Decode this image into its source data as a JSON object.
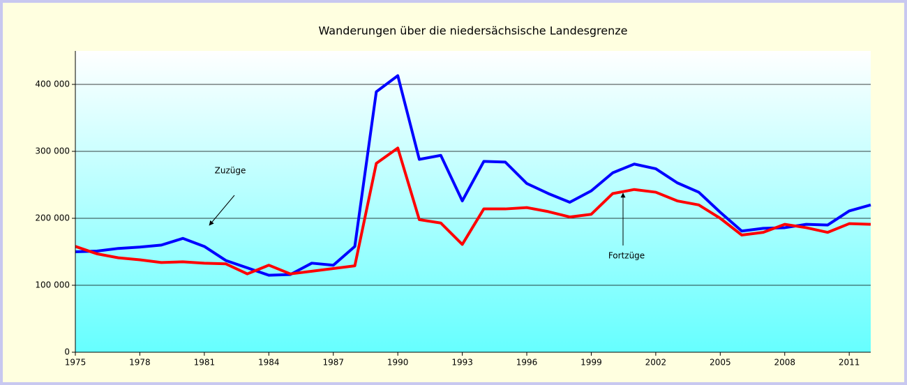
{
  "chart_data": {
    "type": "line",
    "title": "Wanderungen über die niedersächsische Landesgrenze",
    "x": [
      1975,
      1976,
      1977,
      1978,
      1979,
      1980,
      1981,
      1982,
      1983,
      1984,
      1985,
      1986,
      1987,
      1988,
      1989,
      1990,
      1991,
      1992,
      1993,
      1994,
      1995,
      1996,
      1997,
      1998,
      1999,
      2000,
      2001,
      2002,
      2003,
      2004,
      2005,
      2006,
      2007,
      2008,
      2009,
      2010,
      2011,
      2012
    ],
    "series": [
      {
        "name": "Zuzüge",
        "color": "#0000ff",
        "values": [
          150000,
          151000,
          155000,
          157000,
          160000,
          170000,
          158000,
          137000,
          126000,
          115000,
          116000,
          133000,
          130000,
          158000,
          389000,
          413000,
          288000,
          294000,
          226000,
          285000,
          284000,
          252000,
          237000,
          224000,
          241000,
          268000,
          281000,
          274000,
          253000,
          239000,
          209000,
          181000,
          185000,
          186000,
          191000,
          190000,
          211000,
          220000
        ]
      },
      {
        "name": "Fortzüge",
        "color": "#ff0000",
        "values": [
          158000,
          147000,
          141000,
          138000,
          134000,
          135000,
          133000,
          132000,
          117000,
          130000,
          117000,
          121000,
          125000,
          129000,
          282000,
          305000,
          198000,
          193000,
          161000,
          214000,
          214000,
          216000,
          210000,
          202000,
          206000,
          237000,
          243000,
          239000,
          226000,
          220000,
          200000,
          175000,
          179000,
          191000,
          186000,
          179000,
          192000,
          191000
        ]
      }
    ],
    "xlim": [
      1975,
      2012
    ],
    "xticks": [
      1975,
      1978,
      1981,
      1984,
      1987,
      1990,
      1993,
      1996,
      1999,
      2002,
      2005,
      2008,
      2011
    ],
    "ylim": [
      0,
      450000
    ],
    "yticks": [
      0,
      {
        "value": 100000,
        "label": "100 000"
      },
      {
        "value": 200000,
        "label": "200 000"
      },
      {
        "value": 300000,
        "label": "300 000"
      },
      {
        "value": 400000,
        "label": "400 000"
      }
    ],
    "grid": true
  }
}
